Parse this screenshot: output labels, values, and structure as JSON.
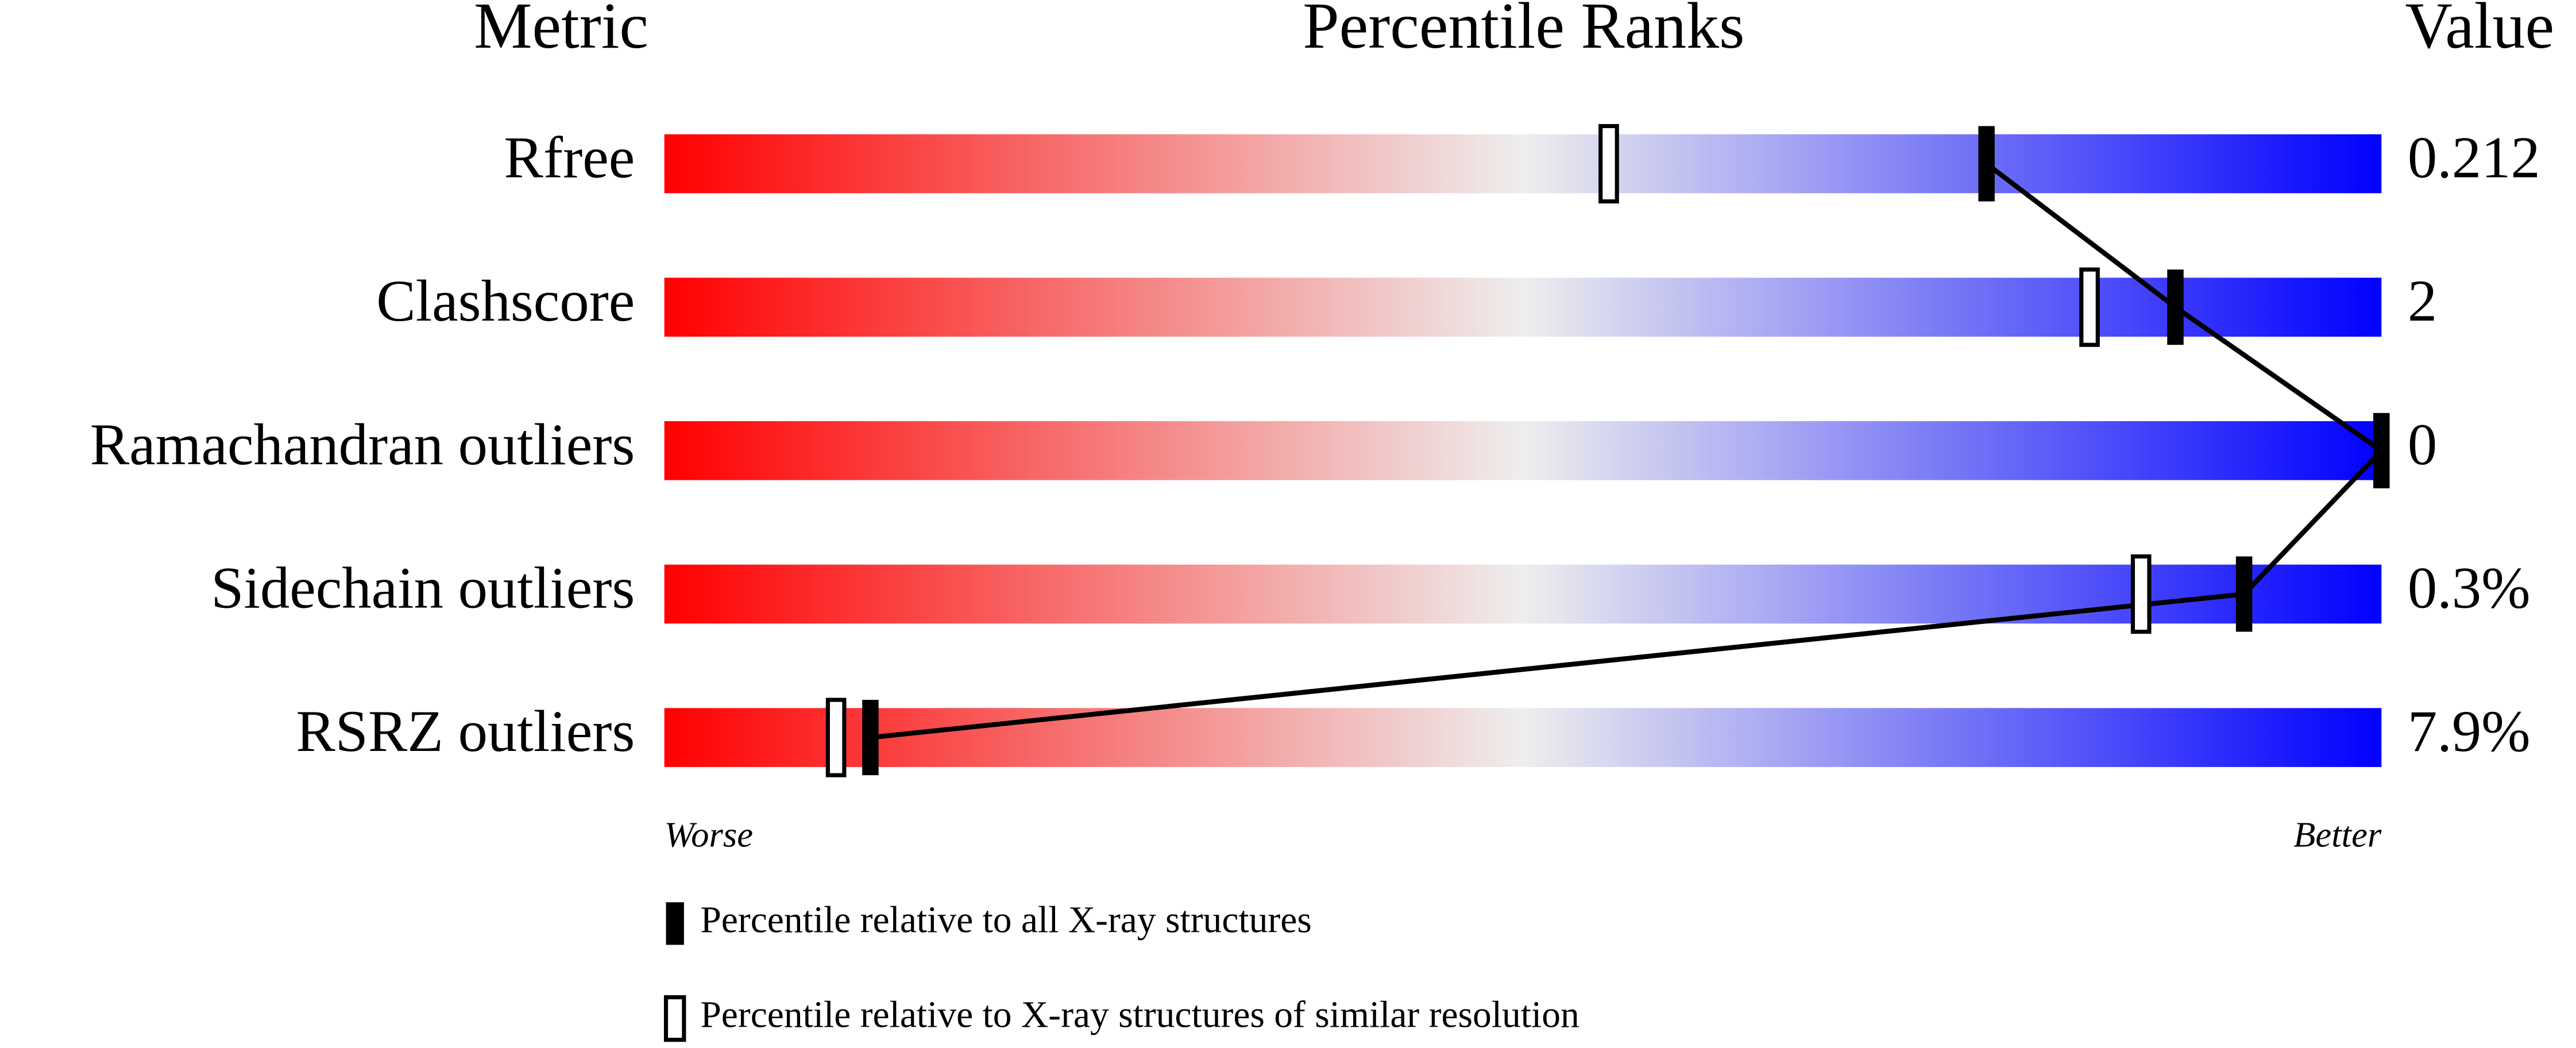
{
  "chart_data": {
    "type": "percentile-slider",
    "headers": {
      "metric": "Metric",
      "ranks": "Percentile Ranks",
      "value": "Value"
    },
    "categories": [
      "Rfree",
      "Clashscore",
      "Ramachandran outliers",
      "Sidechain outliers",
      "RSRZ outliers"
    ],
    "series": [
      {
        "name": "Percentile relative to all X-ray structures",
        "color": "#000000",
        "style": "filled",
        "values": [
          77,
          88,
          100,
          92,
          12
        ]
      },
      {
        "name": "Percentile relative to X-ray structures of similar resolution",
        "color": "#000000",
        "style": "open",
        "values": [
          55,
          83,
          null,
          86,
          10
        ]
      }
    ],
    "printed_values": [
      "0.212",
      "2",
      "0",
      "0.3%",
      "7.9%"
    ],
    "xlim": [
      0,
      100
    ],
    "axis_labels": {
      "left": "Worse",
      "right": "Better"
    },
    "gradient": [
      "#ff0000",
      "#eeeeee",
      "#0000ff"
    ]
  }
}
